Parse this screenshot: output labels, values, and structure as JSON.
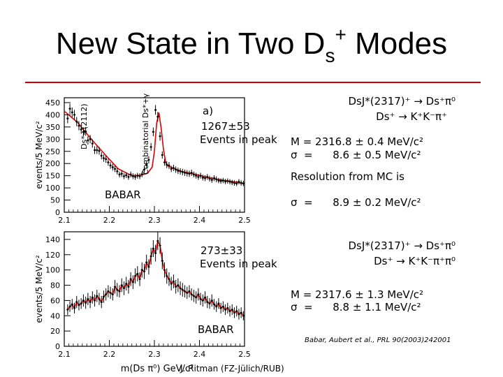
{
  "slide": {
    "title_main": "New State in Two D",
    "title_sub": "s",
    "title_sup": "+",
    "title_end": " Modes",
    "reference": "Babar, Aubert et al., PRL 90(2003)242001",
    "credit": "J. Ritman  (FZ-Jülich/RUB)"
  },
  "colors": {
    "rule": "#cc0000",
    "fit": "#dd0000",
    "data": "#000000"
  },
  "panel_top": {
    "label": "a)",
    "yield": "1267±53",
    "yield_caption": "Events in peak",
    "watermark": "BABAR",
    "annotation_left": "Ds*+(2112)",
    "annotation_right": "Combinatorial Ds*+γ",
    "reaction_line1": "DsJ*(2317)⁺ → Ds⁺π⁰",
    "reaction_line2": "Ds⁺ → K⁺K⁻π⁺",
    "mass": "M = 2316.8 ± 0.4 MeV/c²",
    "sigma": "σ  =      8.6 ± 0.5 MeV/c²",
    "resolution_caption": "Resolution from MC is",
    "resolution": "σ  =      8.9 ± 0.2 MeV/c²"
  },
  "panel_bottom": {
    "yield": "273±33",
    "yield_caption": "Events in peak",
    "watermark": "BABAR",
    "reaction_line1": "DsJ*(2317)⁺ → Ds⁺π⁰",
    "reaction_line2": "Ds⁺ → K⁺K⁻π⁺π⁰",
    "mass": "M = 2317.6 ± 1.3 MeV/c²",
    "sigma": "σ  =      8.8 ± 1.1 MeV/c²"
  },
  "chart_data": [
    {
      "type": "scatter",
      "title": "",
      "xlabel": "",
      "ylabel": "events/5 MeV/c²",
      "xlim": [
        2.1,
        2.5
      ],
      "ylim": [
        0,
        470
      ],
      "xticks": [
        "2.1",
        "2.2",
        "2.3",
        "2.4",
        "2.5"
      ],
      "yticks": [
        "0",
        "50",
        "100",
        "150",
        "200",
        "250",
        "300",
        "350",
        "400",
        "450"
      ],
      "x": [
        2.1075,
        2.1125,
        2.1175,
        2.1225,
        2.1275,
        2.1325,
        2.1375,
        2.1425,
        2.1475,
        2.1525,
        2.1575,
        2.1625,
        2.1675,
        2.1725,
        2.1775,
        2.1825,
        2.1875,
        2.1925,
        2.1975,
        2.2025,
        2.2075,
        2.2125,
        2.2175,
        2.2225,
        2.2275,
        2.2325,
        2.2375,
        2.2425,
        2.2475,
        2.2525,
        2.2575,
        2.2625,
        2.2675,
        2.2725,
        2.2775,
        2.2825,
        2.2875,
        2.2925,
        2.2975,
        2.3025,
        2.3075,
        2.3125,
        2.3175,
        2.3225,
        2.3275,
        2.3325,
        2.3375,
        2.3425,
        2.3475,
        2.3525,
        2.3575,
        2.3625,
        2.3675,
        2.3725,
        2.3775,
        2.3825,
        2.3875,
        2.3925,
        2.3975,
        2.4025,
        2.4075,
        2.4125,
        2.4175,
        2.4225,
        2.4275,
        2.4325,
        2.4375,
        2.4425,
        2.4475,
        2.4525,
        2.4575,
        2.4625,
        2.4675,
        2.4725,
        2.4775,
        2.4825,
        2.4875,
        2.4925,
        2.4975
      ],
      "values": [
        385,
        425,
        410,
        400,
        372,
        355,
        340,
        330,
        332,
        295,
        300,
        282,
        255,
        255,
        252,
        232,
        222,
        218,
        205,
        192,
        185,
        178,
        168,
        155,
        158,
        148,
        152,
        145,
        155,
        148,
        145,
        150,
        148,
        156,
        175,
        195,
        215,
        268,
        330,
        420,
        392,
        312,
        235,
        205,
        195,
        192,
        178,
        182,
        175,
        170,
        168,
        165,
        162,
        160,
        158,
        162,
        155,
        150,
        145,
        150,
        142,
        140,
        145,
        138,
        133,
        140,
        135,
        130,
        128,
        130,
        126,
        128,
        125,
        122,
        120,
        118,
        125,
        120,
        118
      ],
      "errors": [
        20,
        21,
        20,
        20,
        19,
        19,
        18,
        18,
        18,
        17,
        17,
        17,
        16,
        16,
        16,
        15,
        15,
        15,
        14,
        14,
        14,
        13,
        13,
        12,
        13,
        12,
        12,
        12,
        12,
        12,
        12,
        12,
        12,
        12,
        13,
        14,
        15,
        16,
        18,
        20,
        20,
        18,
        15,
        14,
        14,
        14,
        13,
        13,
        13,
        13,
        13,
        13,
        13,
        13,
        13,
        13,
        12,
        12,
        12,
        12,
        12,
        12,
        12,
        12,
        12,
        12,
        12,
        11,
        11,
        11,
        11,
        11,
        11,
        11,
        11,
        11,
        11,
        11,
        11
      ],
      "fit": {
        "x": [
          2.1,
          2.13,
          2.16,
          2.19,
          2.22,
          2.25,
          2.27,
          2.285,
          2.295,
          2.3,
          2.305,
          2.31,
          2.315,
          2.32,
          2.325,
          2.33,
          2.34,
          2.36,
          2.39,
          2.42,
          2.45,
          2.48,
          2.5
        ],
        "y": [
          415,
          368,
          300,
          238,
          178,
          150,
          152,
          160,
          185,
          250,
          365,
          408,
          345,
          260,
          205,
          190,
          182,
          168,
          156,
          142,
          132,
          124,
          118
        ]
      }
    },
    {
      "type": "scatter",
      "title": "",
      "xlabel": "m(Ds π⁰) GeV/c²",
      "ylabel": "events/5 MeV/c²",
      "xlim": [
        2.1,
        2.5
      ],
      "ylim": [
        0,
        150
      ],
      "xticks": [
        "2.1",
        "2.2",
        "2.3",
        "2.4",
        "2.5"
      ],
      "yticks": [
        "0",
        "20",
        "40",
        "60",
        "80",
        "100",
        "120",
        "140"
      ],
      "x": [
        2.1075,
        2.1125,
        2.1175,
        2.1225,
        2.1275,
        2.1325,
        2.1375,
        2.1425,
        2.1475,
        2.1525,
        2.1575,
        2.1625,
        2.1675,
        2.1725,
        2.1775,
        2.1825,
        2.1875,
        2.1925,
        2.1975,
        2.2025,
        2.2075,
        2.2125,
        2.2175,
        2.2225,
        2.2275,
        2.2325,
        2.2375,
        2.2425,
        2.2475,
        2.2525,
        2.2575,
        2.2625,
        2.2675,
        2.2725,
        2.2775,
        2.2825,
        2.2875,
        2.2925,
        2.2975,
        2.3025,
        2.3075,
        2.3125,
        2.3175,
        2.3225,
        2.3275,
        2.3325,
        2.3375,
        2.3425,
        2.3475,
        2.3525,
        2.3575,
        2.3625,
        2.3675,
        2.3725,
        2.3775,
        2.3825,
        2.3875,
        2.3925,
        2.3975,
        2.4025,
        2.4075,
        2.4125,
        2.4175,
        2.4225,
        2.4275,
        2.4325,
        2.4375,
        2.4425,
        2.4475,
        2.4525,
        2.4575,
        2.4625,
        2.4675,
        2.4725,
        2.4775,
        2.4825,
        2.4875,
        2.4925,
        2.4975
      ],
      "values": [
        48,
        52,
        55,
        50,
        58,
        54,
        56,
        60,
        57,
        62,
        58,
        64,
        60,
        66,
        62,
        58,
        65,
        68,
        72,
        70,
        68,
        78,
        74,
        72,
        80,
        76,
        82,
        78,
        88,
        84,
        92,
        95,
        88,
        100,
        98,
        110,
        104,
        118,
        128,
        122,
        138,
        132,
        112,
        100,
        92,
        88,
        82,
        85,
        78,
        80,
        76,
        74,
        72,
        70,
        72,
        68,
        66,
        64,
        68,
        62,
        60,
        64,
        58,
        56,
        60,
        55,
        52,
        56,
        50,
        52,
        48,
        50,
        46,
        48,
        44,
        46,
        42,
        44,
        40
      ],
      "errors": [
        7,
        7,
        7,
        7,
        8,
        7,
        7,
        8,
        8,
        8,
        8,
        8,
        8,
        8,
        8,
        8,
        8,
        8,
        8,
        8,
        8,
        9,
        9,
        8,
        9,
        9,
        9,
        9,
        9,
        9,
        10,
        10,
        9,
        10,
        10,
        10,
        10,
        11,
        11,
        11,
        12,
        11,
        11,
        10,
        10,
        9,
        9,
        9,
        9,
        9,
        9,
        9,
        8,
        8,
        8,
        8,
        8,
        8,
        8,
        8,
        8,
        8,
        8,
        7,
        8,
        7,
        7,
        7,
        7,
        7,
        7,
        7,
        7,
        7,
        7,
        7,
        7,
        7,
        6
      ]
    }
  ]
}
